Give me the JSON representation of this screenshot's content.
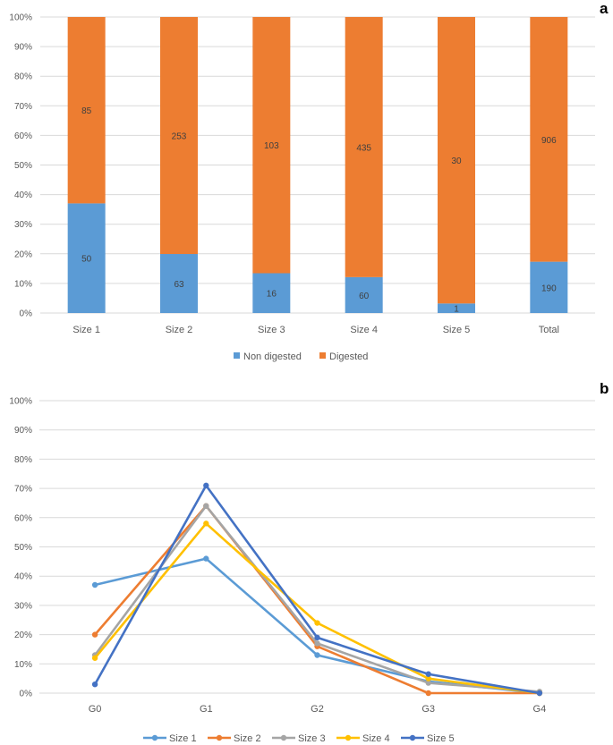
{
  "chart_data": [
    {
      "panel_label": "a",
      "type": "bar",
      "stacked": "percent",
      "categories": [
        "Size 1",
        "Size 2",
        "Size 3",
        "Size 4",
        "Size 5",
        "Total"
      ],
      "series": [
        {
          "name": "Non digested",
          "color": "#5b9bd5",
          "values": [
            50,
            63,
            16,
            60,
            1,
            190
          ]
        },
        {
          "name": "Digested",
          "color": "#ed7d31",
          "values": [
            85,
            253,
            103,
            435,
            30,
            906
          ]
        }
      ],
      "ylim": [
        0,
        100
      ],
      "yticks": [
        "0%",
        "10%",
        "20%",
        "30%",
        "40%",
        "50%",
        "60%",
        "70%",
        "80%",
        "90%",
        "100%"
      ],
      "legend_position": "bottom",
      "grid": true
    },
    {
      "panel_label": "b",
      "type": "line",
      "categories": [
        "G0",
        "G1",
        "G2",
        "G3",
        "G4"
      ],
      "series": [
        {
          "name": "Size 1",
          "color": "#5b9bd5",
          "values": [
            37,
            46,
            13,
            4,
            0
          ]
        },
        {
          "name": "Size 2",
          "color": "#ed7d31",
          "values": [
            20,
            64,
            16,
            0,
            0
          ]
        },
        {
          "name": "Size 3",
          "color": "#a5a5a5",
          "values": [
            13,
            64,
            17,
            3.5,
            0.5
          ]
        },
        {
          "name": "Size 4",
          "color": "#ffc000",
          "values": [
            12,
            58,
            24,
            5,
            0
          ]
        },
        {
          "name": "Size 5",
          "color": "#4472c4",
          "values": [
            3,
            71,
            19,
            6.5,
            0
          ]
        }
      ],
      "ylim": [
        0,
        100
      ],
      "yticks": [
        "0%",
        "10%",
        "20%",
        "30%",
        "40%",
        "50%",
        "60%",
        "70%",
        "80%",
        "90%",
        "100%"
      ],
      "legend_position": "bottom",
      "grid": true
    }
  ]
}
